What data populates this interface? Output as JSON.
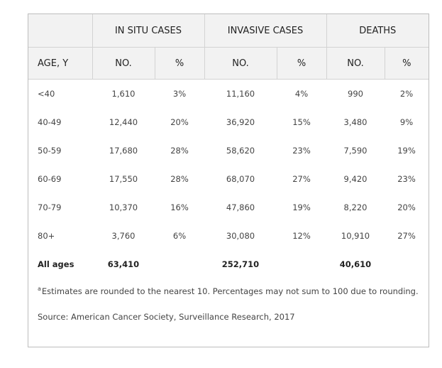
{
  "table": {
    "group_headers": {
      "in_situ": "IN SITU CASES",
      "invasive": "INVASIVE CASES",
      "deaths": "DEATHS"
    },
    "sub_headers": {
      "age": "AGE, Y",
      "no": "NO.",
      "pct": "%"
    },
    "rows": [
      {
        "age": "<40",
        "in_situ_no": "1,610",
        "in_situ_pct": "3%",
        "invasive_no": "11,160",
        "invasive_pct": "4%",
        "deaths_no": "990",
        "deaths_pct": "2%"
      },
      {
        "age": "40-49",
        "in_situ_no": "12,440",
        "in_situ_pct": "20%",
        "invasive_no": "36,920",
        "invasive_pct": "15%",
        "deaths_no": "3,480",
        "deaths_pct": "9%"
      },
      {
        "age": "50-59",
        "in_situ_no": "17,680",
        "in_situ_pct": "28%",
        "invasive_no": "58,620",
        "invasive_pct": "23%",
        "deaths_no": "7,590",
        "deaths_pct": "19%"
      },
      {
        "age": "60-69",
        "in_situ_no": "17,550",
        "in_situ_pct": "28%",
        "invasive_no": "68,070",
        "invasive_pct": "27%",
        "deaths_no": "9,420",
        "deaths_pct": "23%"
      },
      {
        "age": "70-79",
        "in_situ_no": "10,370",
        "in_situ_pct": "16%",
        "invasive_no": "47,860",
        "invasive_pct": "19%",
        "deaths_no": "8,220",
        "deaths_pct": "20%"
      },
      {
        "age": "80+",
        "in_situ_no": "3,760",
        "in_situ_pct": "6%",
        "invasive_no": "30,080",
        "invasive_pct": "12%",
        "deaths_no": "10,910",
        "deaths_pct": "27%"
      }
    ],
    "total": {
      "label": "All ages",
      "in_situ_no": "63,410",
      "invasive_no": "252,710",
      "deaths_no": "40,610"
    }
  },
  "footnote": {
    "marker": "a",
    "text": "Estimates are rounded to the nearest 10. Percentages may not sum to 100 due to rounding."
  },
  "source": "Source: American Cancer Society, Surveillance Research, 2017"
}
